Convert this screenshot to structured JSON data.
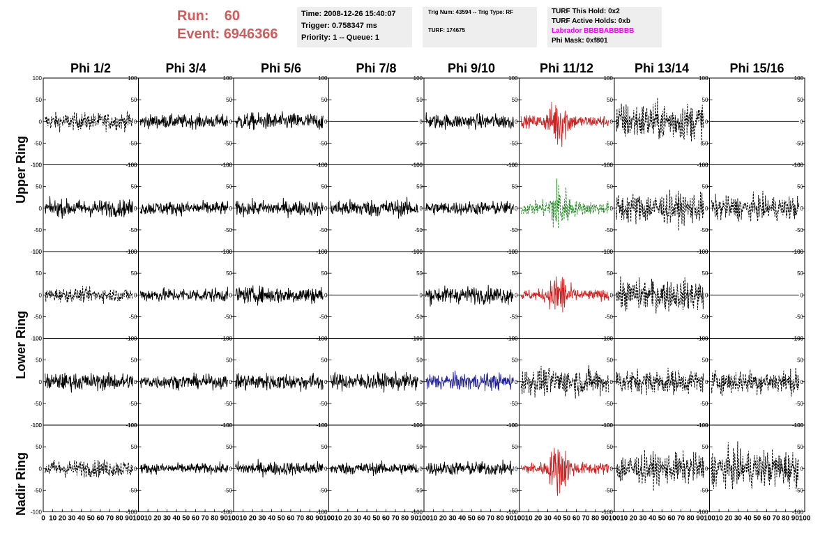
{
  "run": {
    "run_label": "Run:",
    "run_value": "60",
    "event_label": "Event:",
    "event_value": "6946366"
  },
  "info1": {
    "time": "Time: 2008-12-26 15:40:07",
    "trigger": "Trigger: 0.758347 ms",
    "priority": "Priority: 1 -- Queue: 1"
  },
  "info2": {
    "trig": "Trig Num: 43594 -- Trig Type: RF",
    "turf": "TURF: 174675"
  },
  "info3": {
    "this_hold": "TURF This Hold: 0x2",
    "active_holds": "TURF Active Holds: 0xb",
    "labrador": "Labrador BBBBABBBBB",
    "phi_mask": "Phi Mask: 0xf801",
    "labrador_color": "#ee00ee"
  },
  "columns": [
    "Phi 1/2",
    "Phi 3/4",
    "Phi 5/6",
    "Phi 7/8",
    "Phi 9/10",
    "Phi 11/12",
    "Phi 13/14",
    "Phi 15/16"
  ],
  "rings": [
    "Upper Ring",
    "Lower Ring",
    "Nadir Ring"
  ],
  "chart_data": {
    "type": "line",
    "grid": false,
    "xlim": [
      0,
      100
    ],
    "ylim": [
      -100,
      100
    ],
    "x_ticks": [
      "0",
      "10",
      "20",
      "30",
      "40",
      "50",
      "60",
      "70",
      "80",
      "90",
      "100"
    ],
    "y_ticks_left": [
      "100",
      "50",
      "0",
      "-50",
      "-100"
    ],
    "y_ticks_right": [
      "100",
      "50",
      "0",
      "-50",
      "-100"
    ],
    "colors": {
      "black": "#000000",
      "red": "#cc2222",
      "green": "#228822",
      "blue": "#222299"
    },
    "panels": [
      [
        {
          "c": "black",
          "d": true,
          "a": 25
        },
        {
          "c": "black",
          "d": false,
          "a": 20
        },
        {
          "c": "black",
          "d": false,
          "a": 25
        },
        {
          "c": "black",
          "d": false,
          "a": 0
        },
        {
          "c": "black",
          "d": false,
          "a": 22
        },
        {
          "c": "red",
          "d": false,
          "a": 50,
          "p": true
        },
        {
          "c": "black",
          "d": true,
          "a": 55
        },
        {
          "c": "black",
          "d": false,
          "a": 0
        }
      ],
      [
        {
          "c": "black",
          "d": false,
          "a": 25
        },
        {
          "c": "black",
          "d": false,
          "a": 20
        },
        {
          "c": "black",
          "d": false,
          "a": 22
        },
        {
          "c": "black",
          "d": false,
          "a": 25
        },
        {
          "c": "black",
          "d": false,
          "a": 20
        },
        {
          "c": "green",
          "d": true,
          "a": 55,
          "p": true
        },
        {
          "c": "black",
          "d": true,
          "a": 45
        },
        {
          "c": "black",
          "d": true,
          "a": 35
        }
      ],
      [
        {
          "c": "black",
          "d": true,
          "a": 20
        },
        {
          "c": "black",
          "d": false,
          "a": 20
        },
        {
          "c": "black",
          "d": false,
          "a": 25
        },
        {
          "c": "black",
          "d": false,
          "a": 0
        },
        {
          "c": "black",
          "d": false,
          "a": 25
        },
        {
          "c": "red",
          "d": false,
          "a": 45,
          "p": true
        },
        {
          "c": "black",
          "d": true,
          "a": 45
        },
        {
          "c": "black",
          "d": false,
          "a": 0
        }
      ],
      [
        {
          "c": "black",
          "d": false,
          "a": 25
        },
        {
          "c": "black",
          "d": false,
          "a": 20
        },
        {
          "c": "black",
          "d": false,
          "a": 25
        },
        {
          "c": "black",
          "d": false,
          "a": 25
        },
        {
          "c": "blue",
          "d": false,
          "a": 25
        },
        {
          "c": "black",
          "d": true,
          "a": 40
        },
        {
          "c": "black",
          "d": true,
          "a": 35
        },
        {
          "c": "black",
          "d": true,
          "a": 35
        }
      ],
      [
        {
          "c": "black",
          "d": true,
          "a": 25
        },
        {
          "c": "black",
          "d": false,
          "a": 15
        },
        {
          "c": "black",
          "d": false,
          "a": 20
        },
        {
          "c": "black",
          "d": false,
          "a": 18
        },
        {
          "c": "black",
          "d": false,
          "a": 20
        },
        {
          "c": "red",
          "d": false,
          "a": 50,
          "p": true
        },
        {
          "c": "black",
          "d": true,
          "a": 45
        },
        {
          "c": "black",
          "d": true,
          "a": 55
        }
      ]
    ]
  }
}
